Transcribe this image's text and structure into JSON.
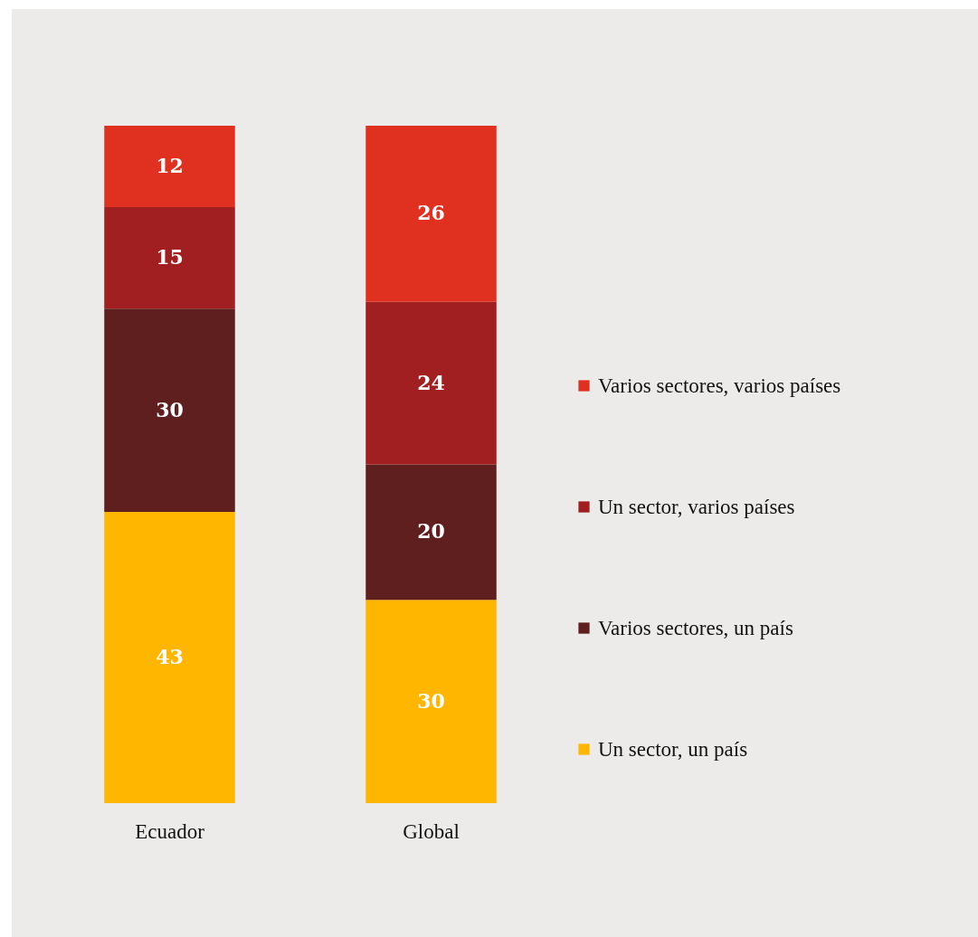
{
  "chart_data": {
    "type": "bar",
    "stacked": true,
    "data_labels": true,
    "legend": "right",
    "categories": [
      "Ecuador",
      "Global"
    ],
    "series": [
      {
        "name": "Un sector, un país",
        "color": "#ffb600",
        "values": [
          43,
          30
        ]
      },
      {
        "name": "Varios sectores, un país",
        "color": "#5e1f1e",
        "values": [
          30,
          20
        ]
      },
      {
        "name": "Un sector, varios países",
        "color": "#a11f20",
        "values": [
          15,
          24
        ]
      },
      {
        "name": "Varios sectores, varios países",
        "color": "#e03120",
        "values": [
          12,
          26
        ]
      }
    ]
  }
}
